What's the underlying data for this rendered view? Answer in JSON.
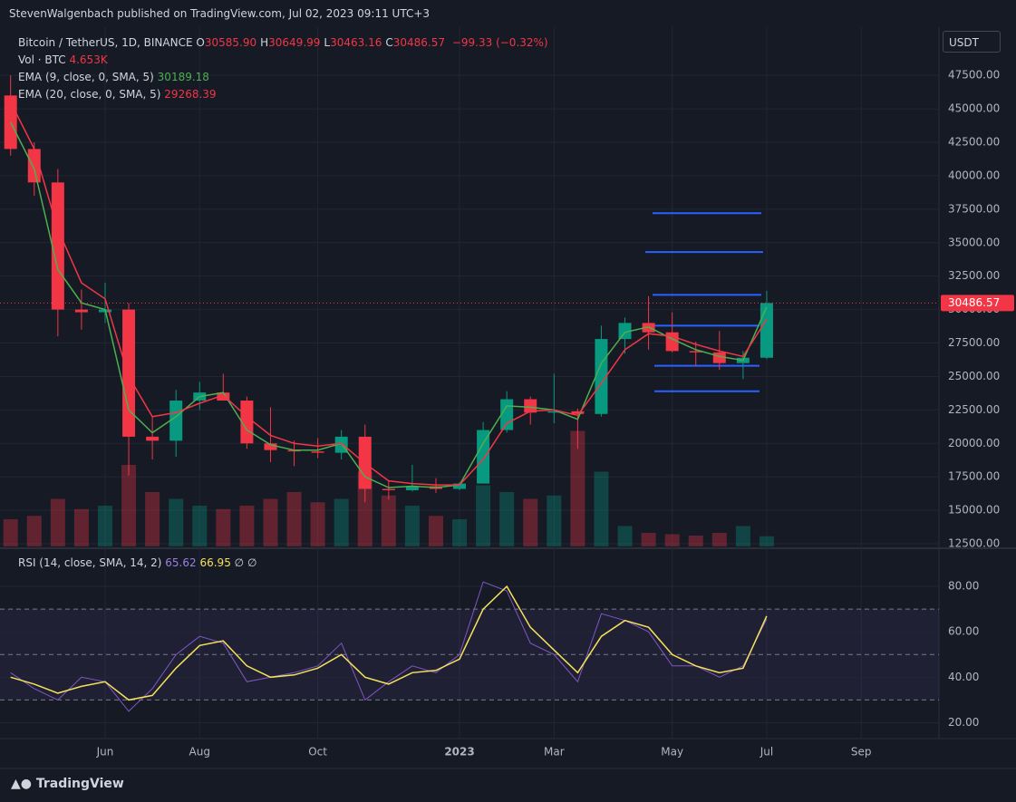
{
  "header": {
    "published": "StevenWalgenbach published on TradingView.com, Jul 02, 2023 09:11 UTC+3",
    "symbol": "Bitcoin / TetherUS, 1D, BINANCE",
    "ohlc": [
      {
        "key": "O",
        "value": "30585.90"
      },
      {
        "key": "H",
        "value": "30649.99"
      },
      {
        "key": "L",
        "value": "30463.16"
      },
      {
        "key": "C",
        "value": "30486.57"
      }
    ],
    "change": "−99.33 (−0.32%)",
    "currency": "USDT",
    "footer": "TradingView",
    "rsi_name": "RSI (14, close, SMA, 14, 2)",
    "rsi_extra": [
      "∅",
      "∅"
    ]
  },
  "chart_data": [
    {
      "type": "candlestick",
      "categories": [
        null,
        null,
        null,
        null,
        "Jun",
        null,
        null,
        null,
        "Aug",
        null,
        null,
        null,
        null,
        "Oct",
        null,
        null,
        null,
        null,
        null,
        "2023",
        null,
        null,
        null,
        "Mar",
        null,
        null,
        null,
        null,
        "May",
        null,
        null,
        null,
        "Jul",
        null,
        null,
        null,
        "Sep",
        null,
        null
      ],
      "open": [
        46000,
        42000,
        39500,
        30000,
        29800,
        30000,
        20500,
        20200,
        23200,
        23800,
        23200,
        20000,
        19500,
        19400,
        19300,
        20500,
        16600,
        16500,
        16800,
        16600,
        17000,
        21000,
        23300,
        22300,
        22400,
        22200,
        27800,
        29000,
        28300,
        26900,
        26800,
        26000,
        26400,
        null,
        null,
        null,
        null,
        null,
        null
      ],
      "high": [
        47500,
        42500,
        40500,
        31500,
        32000,
        30500,
        22000,
        24000,
        24600,
        25200,
        23500,
        22700,
        20200,
        20400,
        21000,
        21400,
        17200,
        18400,
        17400,
        17100,
        21600,
        23900,
        23500,
        25200,
        22600,
        28800,
        29400,
        31000,
        29800,
        27600,
        28400,
        26900,
        31400,
        null,
        null,
        null,
        null,
        null,
        null
      ],
      "low": [
        41500,
        38500,
        28000,
        28500,
        29000,
        17600,
        18800,
        19000,
        22500,
        23300,
        19600,
        18600,
        18300,
        18900,
        18800,
        15600,
        15800,
        16400,
        16300,
        16500,
        17000,
        20800,
        21400,
        21500,
        19600,
        22000,
        26700,
        27000,
        26800,
        25800,
        25500,
        24800,
        26300,
        null,
        null,
        null,
        null,
        null,
        null
      ],
      "close": [
        42000,
        39500,
        30000,
        29800,
        30000,
        20500,
        20200,
        23200,
        23800,
        23200,
        20000,
        19500,
        19400,
        19300,
        20500,
        16600,
        16500,
        16800,
        16600,
        17000,
        21000,
        23300,
        22300,
        22400,
        22200,
        27800,
        29000,
        28300,
        26900,
        26800,
        26000,
        26400,
        30486.57,
        null,
        null,
        null,
        null,
        null,
        null
      ],
      "up_color": "#089981",
      "down_color": "#f23645",
      "series": [
        {
          "name": "EMA (9, close, 0, SMA, 5)",
          "color": "#4caf50",
          "values": [
            44000,
            40500,
            33000,
            30500,
            30000,
            22500,
            20800,
            22000,
            23500,
            23800,
            21000,
            19900,
            19500,
            19500,
            20000,
            17500,
            16700,
            16800,
            16700,
            16900,
            20000,
            22800,
            22700,
            22500,
            21800,
            26000,
            28300,
            28700,
            27800,
            27000,
            26500,
            26200,
            30189.18,
            null,
            null,
            null,
            null,
            null,
            null
          ]
        },
        {
          "name": "EMA (20, close, 0, SMA, 5)",
          "color": "#f23645",
          "values": [
            45500,
            42000,
            36000,
            32000,
            30800,
            25000,
            22000,
            22300,
            23000,
            23600,
            22000,
            20600,
            20000,
            19800,
            20000,
            18500,
            17200,
            17000,
            16900,
            16900,
            18800,
            21500,
            22400,
            22500,
            22100,
            24500,
            27000,
            28200,
            28000,
            27400,
            26900,
            26500,
            29268.39,
            null,
            null,
            null,
            null,
            null,
            null
          ]
        }
      ],
      "volume": {
        "name": "Vol · BTC",
        "last_label": "4.653K",
        "values": [
          40000,
          45000,
          70000,
          55000,
          60000,
          120000,
          80000,
          70000,
          60000,
          55000,
          60000,
          70000,
          80000,
          65000,
          70000,
          110000,
          75000,
          60000,
          45000,
          40000,
          90000,
          80000,
          70000,
          75000,
          170000,
          110000,
          30000,
          20000,
          18000,
          16000,
          20000,
          30000,
          15000,
          null,
          null,
          null,
          null,
          null,
          null
        ],
        "vlim": [
          0,
          200000
        ]
      },
      "levels": [
        37200,
        34300,
        31100,
        28800,
        25800,
        23900
      ],
      "level_color": "#2962ff",
      "ylim": [
        12300,
        51100
      ],
      "yticks": [
        {
          "value": 12500,
          "label": "12500.00"
        },
        {
          "value": 15000,
          "label": "15000.00"
        },
        {
          "value": 17500,
          "label": "17500.00"
        },
        {
          "value": 20000,
          "label": "20000.00"
        },
        {
          "value": 22500,
          "label": "22500.00"
        },
        {
          "value": 25000,
          "label": "25000.00"
        },
        {
          "value": 27500,
          "label": "27500.00"
        },
        {
          "value": 30000,
          "label": "30000.00"
        },
        {
          "value": 32500,
          "label": "32500.00"
        },
        {
          "value": 35000,
          "label": "35000.00"
        },
        {
          "value": 37500,
          "label": "37500.00"
        },
        {
          "value": 40000,
          "label": "40000.00"
        },
        {
          "value": 42500,
          "label": "42500.00"
        },
        {
          "value": 45000,
          "label": "45000.00"
        },
        {
          "value": 47500,
          "label": "47500.00"
        }
      ],
      "grid": true
    },
    {
      "type": "line",
      "series": [
        {
          "name": "RSI",
          "color": "#7e57c2",
          "values": [
            42,
            35,
            30,
            40,
            38,
            25,
            35,
            50,
            58,
            55,
            38,
            40,
            42,
            45,
            55,
            30,
            38,
            45,
            42,
            50,
            82,
            78,
            55,
            50,
            38,
            68,
            65,
            60,
            45,
            45,
            40,
            45,
            65.62,
            null,
            null,
            null,
            null,
            null,
            null
          ]
        },
        {
          "name": "SMA",
          "color": "#f5e15b",
          "values": [
            40,
            37,
            33,
            36,
            38,
            30,
            32,
            44,
            54,
            56,
            45,
            40,
            41,
            44,
            50,
            40,
            37,
            42,
            43,
            48,
            70,
            80,
            62,
            52,
            42,
            58,
            65,
            62,
            50,
            45,
            42,
            44,
            66.95,
            null,
            null,
            null,
            null,
            null,
            null
          ]
        }
      ],
      "bands": [
        30,
        50,
        70
      ],
      "ylim": [
        13,
        96
      ],
      "yticks": [
        {
          "value": 20,
          "label": "20.00"
        },
        {
          "value": 40,
          "label": "40.00"
        },
        {
          "value": 60,
          "label": "60.00"
        },
        {
          "value": 80,
          "label": "80.00"
        }
      ],
      "grid": true
    }
  ]
}
